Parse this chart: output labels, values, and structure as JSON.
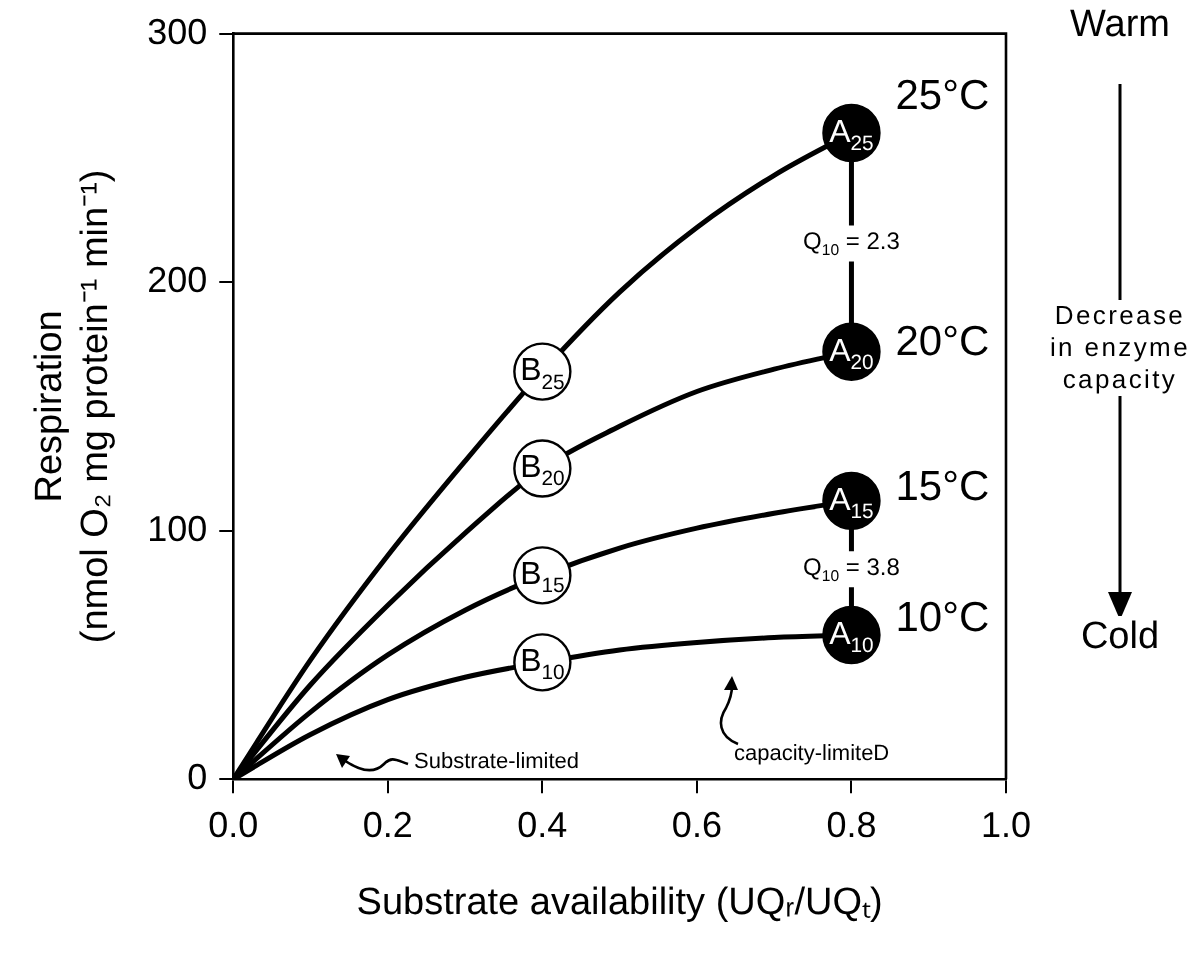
{
  "chart_data": {
    "type": "line",
    "xlabel": "Substrate availability (UQᵣ/UQₜ)",
    "ylabel": "Respiration\n(nmol O₂ mg protein⁻¹ min⁻¹)",
    "xlim": [
      0,
      1
    ],
    "xticks": [
      {
        "value": 0,
        "label": "0.0"
      },
      {
        "value": 0.2,
        "label": "0.2"
      },
      {
        "value": 0.4,
        "label": "0.4"
      },
      {
        "value": 0.6,
        "label": "0.6"
      },
      {
        "value": 0.8,
        "label": "0.8"
      },
      {
        "value": 1,
        "label": "1.0"
      }
    ],
    "ylim": [
      0,
      300
    ],
    "yticks": [
      0,
      100,
      200,
      300
    ],
    "grid": false,
    "legend": false,
    "marker": "none",
    "line_style": "solid",
    "series": [
      {
        "type": "line",
        "name": "25°C",
        "color": "#000000",
        "x": [
          0,
          0.1,
          0.2,
          0.3,
          0.4,
          0.5,
          0.6,
          0.7,
          0.8
        ],
        "values": [
          0,
          48,
          90,
          128,
          164,
          196,
          222,
          243,
          260
        ]
      },
      {
        "type": "line",
        "name": "20°C",
        "color": "#000000",
        "x": [
          0,
          0.1,
          0.2,
          0.3,
          0.4,
          0.5,
          0.6,
          0.7,
          0.8
        ],
        "values": [
          0,
          38,
          70,
          99,
          125,
          142,
          156,
          165,
          172
        ]
      },
      {
        "type": "line",
        "name": "15°C",
        "color": "#000000",
        "x": [
          0,
          0.1,
          0.2,
          0.3,
          0.4,
          0.5,
          0.6,
          0.7,
          0.8
        ],
        "values": [
          0,
          27,
          50,
          68,
          82,
          93,
          101,
          107,
          112
        ]
      },
      {
        "type": "line",
        "name": "10°C",
        "color": "#000000",
        "x": [
          0,
          0.1,
          0.2,
          0.3,
          0.4,
          0.5,
          0.6,
          0.7,
          0.8
        ],
        "values": [
          0,
          18,
          32,
          41,
          47,
          52,
          55,
          57,
          58
        ]
      },
      {
        "color": "#000000",
        "x": [
          0.8,
          0.8
        ],
        "values": [
          260,
          172
        ]
      },
      {
        "color": "#000000",
        "x": [
          0.8,
          0.8
        ],
        "values": [
          112,
          58
        ]
      },
      {
        "type": "scatter",
        "color": "#ffffff",
        "marker": "circle",
        "x": [
          0.4,
          0.4,
          0.4,
          0.4
        ],
        "values": [
          164,
          125,
          82,
          47
        ]
      },
      {
        "type": "scatter",
        "color": "#000000",
        "marker": "circle",
        "x": [
          0.8,
          0.8,
          0.8,
          0.8
        ],
        "values": [
          260,
          172,
          112,
          58
        ]
      }
    ],
    "annotations": [
      "Q$_{10}$ = 2.3",
      "Q$_{10}$ = 3.8",
      "B$_{25}$",
      "B$_{20}$",
      "B$_{15}$",
      "B$_{10}$",
      "A$_{25}$",
      "A$_{20}$",
      "A$_{15}$",
      "A$_{10}$",
      "Substrate-limited",
      "capacity-limiteD",
      "Warm",
      "Decrease\nin enzyme\ncapacity",
      "Cold"
    ]
  }
}
